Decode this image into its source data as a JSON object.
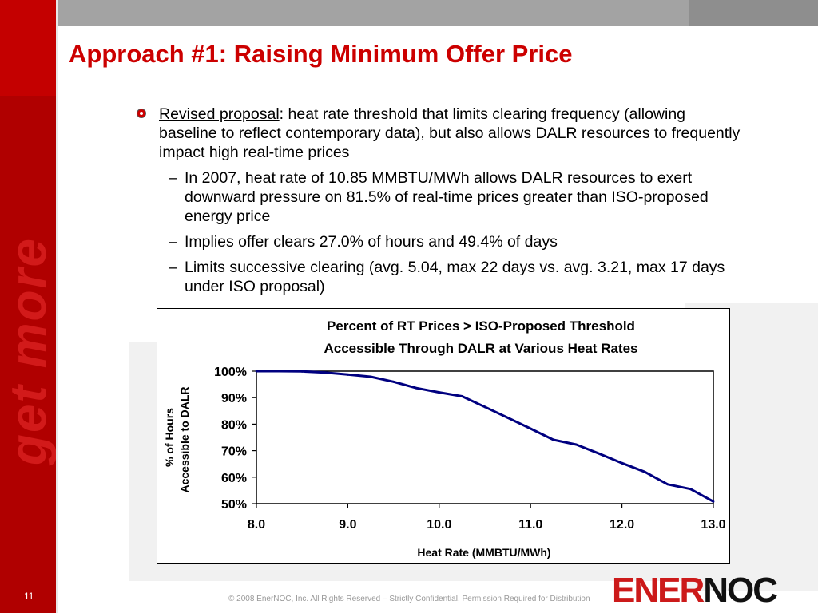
{
  "slide": {
    "title": "Approach #1: Raising Minimum Offer Price",
    "sidebar_text": "get more",
    "page_number": "11",
    "footer": "© 2008 EnerNOC, Inc. All Rights Reserved – Strictly Confidential, Permission Required for Distribution",
    "logo_part1": "ENER",
    "logo_part2": "NOC",
    "colors": {
      "accent": "#cc0000",
      "sidebar": "#c40000",
      "line": "#000080"
    }
  },
  "bullets": {
    "main_label": "Revised proposal",
    "main_colon": ":",
    "main_text": " heat rate threshold that limits clearing frequency (allowing baseline to reflect contemporary data), but also allows DALR resources to frequently impact high real-time prices",
    "sub1_pre": "In 2007, ",
    "sub1_link": "heat rate of 10.85 MMBTU/MWh",
    "sub1_post": " allows DALR resources to exert downward pressure on 81.5% of real-time prices greater than ISO-proposed energy price",
    "sub2": "Implies offer clears 27.0% of hours and 49.4% of days",
    "sub3": "Limits successive clearing (avg. 5.04, max 22 days vs. avg. 3.21, max 17 days under ISO proposal)",
    "dash": "–"
  },
  "chart_data": {
    "type": "line",
    "title_line1": "Percent of RT Prices > ISO-Proposed Threshold",
    "title_line2": "Accessible Through DALR at Various Heat Rates",
    "xlabel": "Heat Rate (MMBTU/MWh)",
    "ylabel_line1": "% of Hours",
    "ylabel_line2": "Accessible to DALR",
    "xlim": [
      8.0,
      13.0
    ],
    "ylim": [
      50,
      100
    ],
    "x_ticks": [
      "8.0",
      "9.0",
      "10.0",
      "11.0",
      "12.0",
      "13.0"
    ],
    "y_ticks": [
      "50%",
      "60%",
      "70%",
      "80%",
      "90%",
      "100%"
    ],
    "grid": false,
    "legend": "none",
    "series": [
      {
        "x": [
          8.0,
          8.25,
          8.5,
          8.75,
          9.0,
          9.25,
          9.5,
          9.75,
          10.0,
          10.25,
          10.5,
          10.75,
          11.0,
          11.25,
          11.5,
          11.75,
          12.0,
          12.25,
          12.5,
          12.75,
          13.0
        ],
        "y": [
          100.0,
          100.0,
          99.9,
          99.5,
          98.7,
          97.9,
          96.0,
          93.6,
          92.0,
          90.5,
          86.5,
          82.4,
          78.3,
          74.1,
          72.3,
          68.9,
          65.3,
          62.0,
          57.3,
          55.5,
          50.8
        ]
      }
    ]
  }
}
